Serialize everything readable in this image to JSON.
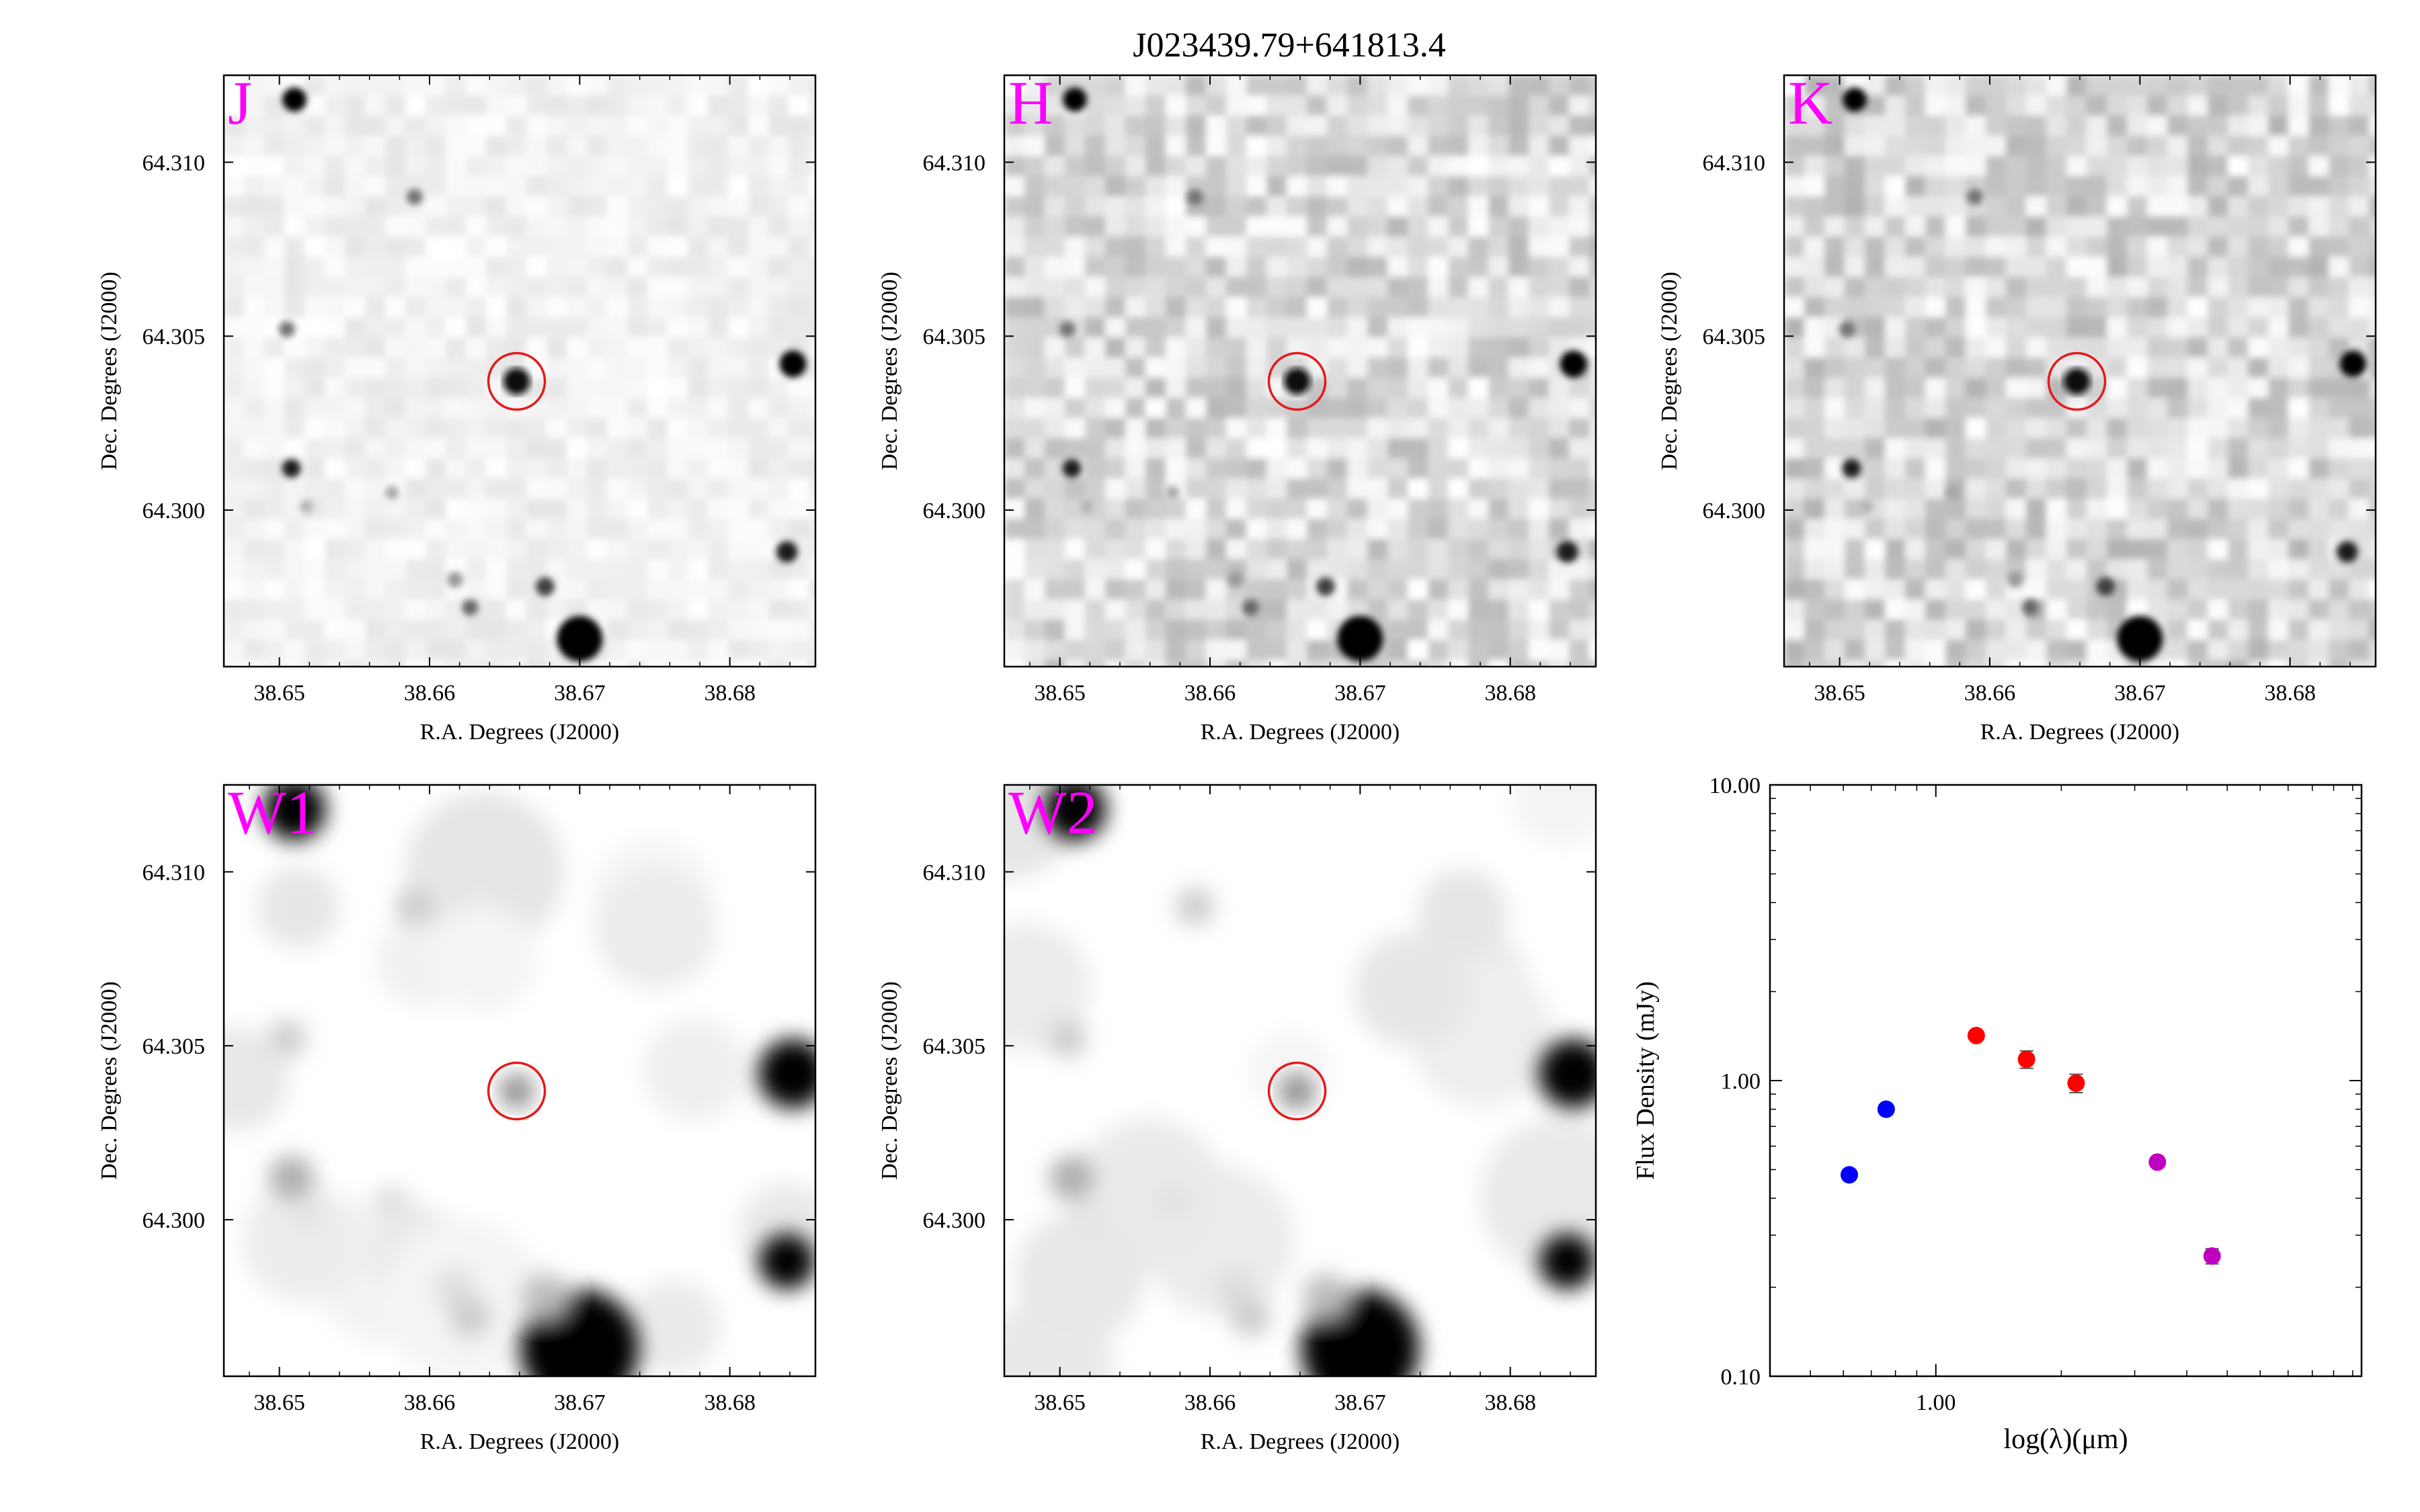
{
  "figure": {
    "title": "J023439.79+641813.4"
  },
  "image_panels": {
    "xlabel": "R.A. Degrees (J2000)",
    "ylabel": "Dec. Degrees (J2000)",
    "x_ticks": [
      38.65,
      38.66,
      38.67,
      38.68
    ],
    "x_tick_labels": [
      "38.65",
      "38.66",
      "38.67",
      "38.68"
    ],
    "y_ticks": [
      64.31,
      64.305,
      64.3
    ],
    "y_tick_labels": [
      "64.310",
      "64.305",
      "64.300"
    ],
    "xlim": [
      38.6463,
      38.6857
    ],
    "ylim": [
      64.2955,
      64.3125
    ],
    "target": {
      "ra": 38.6658,
      "dec": 64.3037,
      "marker_color": "#e41a1c"
    },
    "label_color": "#ff00ff",
    "panels": [
      {
        "band": "J",
        "style": "2mass"
      },
      {
        "band": "H",
        "style": "2mass"
      },
      {
        "band": "K",
        "style": "2mass"
      },
      {
        "band": "W1",
        "style": "wise"
      },
      {
        "band": "W2",
        "style": "wise"
      }
    ]
  },
  "chart_data": {
    "type": "scatter",
    "title": "",
    "xlabel": "log(λ)(μm)",
    "ylabel": "Flux Density (mJy)",
    "x_scale": "log",
    "y_scale": "log",
    "xlim": [
      0.4,
      10.5
    ],
    "ylim": [
      0.1,
      10.0
    ],
    "x_tick_labels": [
      "1.00"
    ],
    "y_tick_labels": [
      "0.10",
      "1.00",
      "10.00"
    ],
    "series": [
      {
        "color": "#0000ff",
        "points": [
          {
            "x": 0.62,
            "y": 0.48,
            "err": 0.0
          },
          {
            "x": 0.76,
            "y": 0.8,
            "err": 0.0
          }
        ]
      },
      {
        "color": "#ff0000",
        "points": [
          {
            "x": 1.25,
            "y": 1.42,
            "err": 0.04
          },
          {
            "x": 1.65,
            "y": 1.18,
            "err": 0.08
          },
          {
            "x": 2.17,
            "y": 0.98,
            "err": 0.07
          }
        ]
      },
      {
        "color": "#c000c0",
        "points": [
          {
            "x": 3.4,
            "y": 0.53,
            "err": 0.0
          },
          {
            "x": 4.6,
            "y": 0.255,
            "err": 0.015
          }
        ]
      }
    ]
  }
}
